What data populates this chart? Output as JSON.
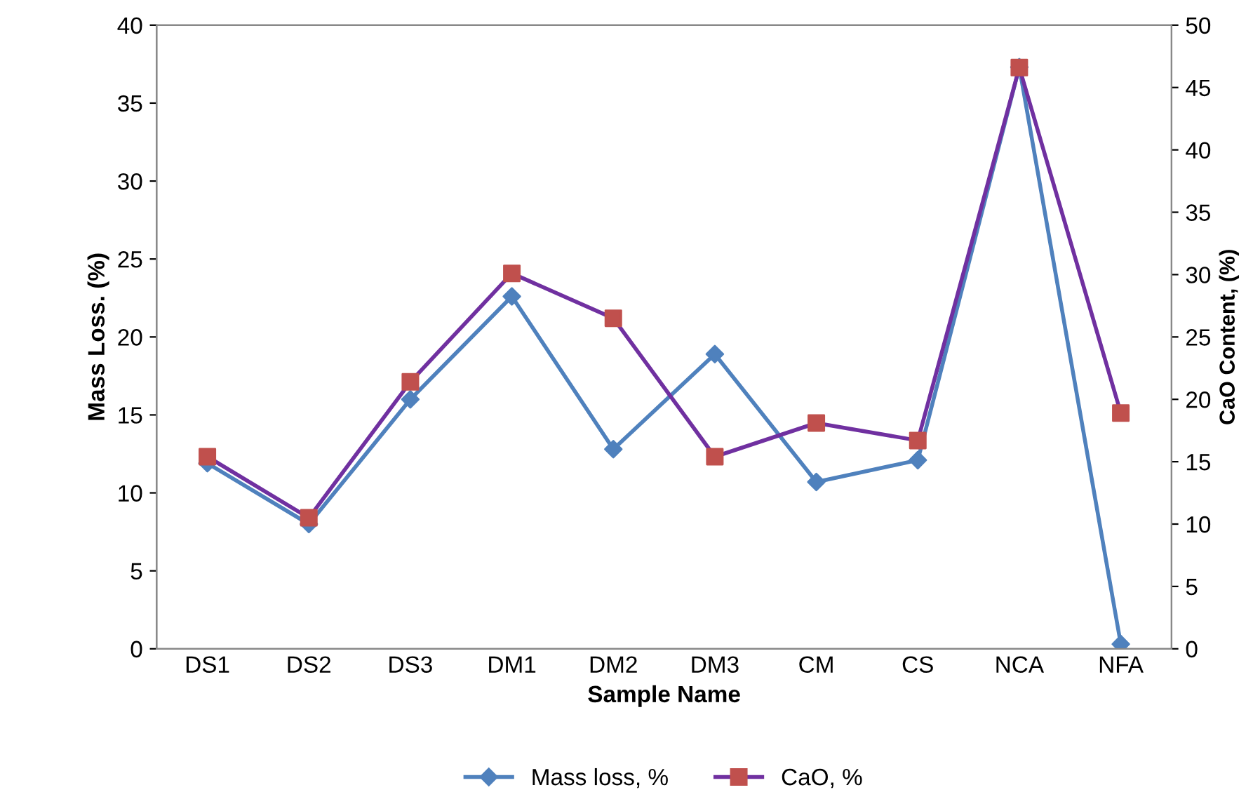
{
  "chart_data": {
    "type": "line",
    "xlabel": "Sample Name",
    "ylabel": "Mass Loss. (%)",
    "y2label": "CaO Content, (%)",
    "categories": [
      "DS1",
      "DS2",
      "DS3",
      "DM1",
      "DM2",
      "DM3",
      "CM",
      "CS",
      "NCA",
      "NFA"
    ],
    "series": [
      {
        "name": "Mass loss, %",
        "color": "#4f81bd",
        "marker": "diamond",
        "values": [
          11.9,
          8.0,
          16.0,
          22.6,
          12.8,
          18.9,
          10.7,
          12.1,
          37.3,
          0.3
        ]
      },
      {
        "name": "CaO, %",
        "color": "#7030a0",
        "colors": [
          "#c0504d",
          "#c0504d",
          "#c0504d",
          "#c0504d",
          "#c0504d",
          "#c0504d",
          "#c0504d",
          "#c0504d",
          "#c0504d",
          "#c0504d"
        ],
        "marker": "square",
        "axis": "y2",
        "values": [
          15.4,
          10.5,
          21.4,
          30.1,
          26.5,
          15.4,
          18.1,
          16.7,
          46.6,
          18.9
        ]
      }
    ],
    "ylim": [
      0,
      40
    ],
    "yticks": [
      0,
      5,
      10,
      15,
      20,
      25,
      30,
      35,
      40
    ],
    "y2lim": [
      0,
      50
    ],
    "y2ticks": [
      0,
      5,
      10,
      15,
      20,
      25,
      30,
      35,
      40,
      45,
      50
    ],
    "legend": "bottom",
    "grid": false
  }
}
